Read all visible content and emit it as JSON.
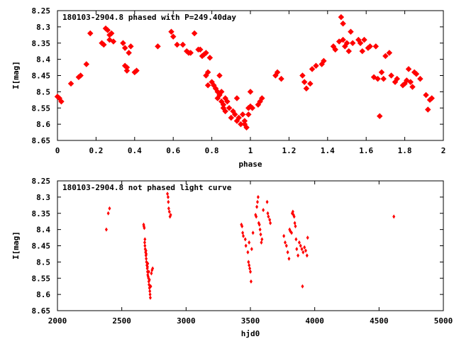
{
  "chart_data": [
    {
      "type": "scatter",
      "title": "180103-2904.8 phased with P=249.40day",
      "xlabel": "phase",
      "ylabel": "I[mag]",
      "xlim": [
        0,
        2
      ],
      "ylim": [
        8.25,
        8.65
      ],
      "y_inverted": true,
      "xticks": [
        "0",
        "0.2",
        "0.4",
        "0.6",
        "0.8",
        "1",
        "1.2",
        "1.4",
        "1.6",
        "1.8",
        "2"
      ],
      "xtick_values": [
        0,
        0.2,
        0.4,
        0.6,
        0.8,
        1.0,
        1.2,
        1.4,
        1.6,
        1.8,
        2.0
      ],
      "yticks": [
        "8.25",
        "8.3",
        "8.35",
        "8.4",
        "8.45",
        "8.5",
        "8.55",
        "8.6",
        "8.65"
      ],
      "ytick_values": [
        8.25,
        8.3,
        8.35,
        8.4,
        8.45,
        8.5,
        8.55,
        8.6,
        8.65
      ],
      "grid": false,
      "marker_color": "#ff0000",
      "points": [
        [
          0.0,
          8.515
        ],
        [
          0.01,
          8.52
        ],
        [
          0.02,
          8.53
        ],
        [
          0.07,
          8.475
        ],
        [
          0.11,
          8.455
        ],
        [
          0.12,
          8.45
        ],
        [
          0.15,
          8.415
        ],
        [
          0.17,
          8.32
        ],
        [
          0.23,
          8.35
        ],
        [
          0.24,
          8.355
        ],
        [
          0.25,
          8.305
        ],
        [
          0.26,
          8.31
        ],
        [
          0.27,
          8.325
        ],
        [
          0.27,
          8.34
        ],
        [
          0.28,
          8.32
        ],
        [
          0.29,
          8.345
        ],
        [
          0.34,
          8.35
        ],
        [
          0.35,
          8.365
        ],
        [
          0.35,
          8.42
        ],
        [
          0.36,
          8.425
        ],
        [
          0.36,
          8.435
        ],
        [
          0.37,
          8.38
        ],
        [
          0.38,
          8.36
        ],
        [
          0.4,
          8.44
        ],
        [
          0.41,
          8.435
        ],
        [
          0.52,
          8.36
        ],
        [
          0.59,
          8.315
        ],
        [
          0.6,
          8.33
        ],
        [
          0.62,
          8.355
        ],
        [
          0.65,
          8.355
        ],
        [
          0.67,
          8.375
        ],
        [
          0.68,
          8.38
        ],
        [
          0.69,
          8.38
        ],
        [
          0.71,
          8.32
        ],
        [
          0.73,
          8.37
        ],
        [
          0.74,
          8.37
        ],
        [
          0.75,
          8.39
        ],
        [
          0.76,
          8.385
        ],
        [
          0.77,
          8.38
        ],
        [
          0.77,
          8.45
        ],
        [
          0.78,
          8.48
        ],
        [
          0.78,
          8.44
        ],
        [
          0.79,
          8.395
        ],
        [
          0.8,
          8.47
        ],
        [
          0.81,
          8.48
        ],
        [
          0.82,
          8.49
        ],
        [
          0.83,
          8.5
        ],
        [
          0.83,
          8.52
        ],
        [
          0.84,
          8.51
        ],
        [
          0.84,
          8.45
        ],
        [
          0.85,
          8.53
        ],
        [
          0.85,
          8.5
        ],
        [
          0.86,
          8.54
        ],
        [
          0.86,
          8.55
        ],
        [
          0.87,
          8.52
        ],
        [
          0.87,
          8.56
        ],
        [
          0.88,
          8.53
        ],
        [
          0.89,
          8.55
        ],
        [
          0.9,
          8.58
        ],
        [
          0.91,
          8.56
        ],
        [
          0.92,
          8.57
        ],
        [
          0.93,
          8.59
        ],
        [
          0.93,
          8.52
        ],
        [
          0.94,
          8.58
        ],
        [
          0.95,
          8.6
        ],
        [
          0.96,
          8.57
        ],
        [
          0.97,
          8.59
        ],
        [
          0.97,
          8.6
        ],
        [
          0.98,
          8.61
        ],
        [
          0.99,
          8.57
        ],
        [
          0.99,
          8.55
        ],
        [
          1.0,
          8.5
        ],
        [
          1.0,
          8.545
        ],
        [
          1.01,
          8.55
        ],
        [
          1.04,
          8.54
        ],
        [
          1.05,
          8.53
        ],
        [
          1.06,
          8.52
        ],
        [
          1.13,
          8.45
        ],
        [
          1.14,
          8.44
        ],
        [
          1.16,
          8.46
        ],
        [
          1.27,
          8.45
        ],
        [
          1.28,
          8.47
        ],
        [
          1.29,
          8.49
        ],
        [
          1.31,
          8.475
        ],
        [
          1.32,
          8.43
        ],
        [
          1.34,
          8.42
        ],
        [
          1.37,
          8.415
        ],
        [
          1.38,
          8.405
        ],
        [
          1.43,
          8.36
        ],
        [
          1.44,
          8.37
        ],
        [
          1.46,
          8.345
        ],
        [
          1.47,
          8.27
        ],
        [
          1.48,
          8.29
        ],
        [
          1.48,
          8.34
        ],
        [
          1.49,
          8.36
        ],
        [
          1.5,
          8.35
        ],
        [
          1.51,
          8.375
        ],
        [
          1.52,
          8.315
        ],
        [
          1.53,
          8.35
        ],
        [
          1.56,
          8.34
        ],
        [
          1.57,
          8.35
        ],
        [
          1.58,
          8.375
        ],
        [
          1.59,
          8.34
        ],
        [
          1.61,
          8.365
        ],
        [
          1.62,
          8.36
        ],
        [
          1.64,
          8.455
        ],
        [
          1.65,
          8.36
        ],
        [
          1.66,
          8.46
        ],
        [
          1.67,
          8.575
        ],
        [
          1.68,
          8.44
        ],
        [
          1.69,
          8.46
        ],
        [
          1.7,
          8.39
        ],
        [
          1.72,
          8.38
        ],
        [
          1.73,
          8.45
        ],
        [
          1.75,
          8.47
        ],
        [
          1.76,
          8.46
        ],
        [
          1.79,
          8.48
        ],
        [
          1.8,
          8.475
        ],
        [
          1.81,
          8.465
        ],
        [
          1.82,
          8.43
        ],
        [
          1.83,
          8.47
        ],
        [
          1.84,
          8.485
        ],
        [
          1.85,
          8.44
        ],
        [
          1.86,
          8.445
        ],
        [
          1.88,
          8.46
        ],
        [
          1.91,
          8.51
        ],
        [
          1.92,
          8.555
        ],
        [
          1.93,
          8.525
        ],
        [
          1.94,
          8.52
        ]
      ]
    },
    {
      "type": "scatter",
      "title": "180103-2904.8 not phased light curve",
      "xlabel": "hjd0",
      "ylabel": "I[mag]",
      "xlim": [
        2000,
        5000
      ],
      "ylim": [
        8.25,
        8.65
      ],
      "y_inverted": true,
      "xticks": [
        "2000",
        "2500",
        "3000",
        "3500",
        "4000",
        "4500",
        "5000"
      ],
      "xtick_values": [
        2000,
        2500,
        3000,
        3500,
        4000,
        4500,
        5000
      ],
      "yticks": [
        "8.25",
        "8.3",
        "8.35",
        "8.4",
        "8.45",
        "8.5",
        "8.55",
        "8.6",
        "8.65"
      ],
      "ytick_values": [
        8.25,
        8.3,
        8.35,
        8.4,
        8.45,
        8.5,
        8.55,
        8.6,
        8.65
      ],
      "grid": false,
      "marker_color": "#ff0000",
      "points": [
        [
          2380,
          8.4
        ],
        [
          2395,
          8.35
        ],
        [
          2405,
          8.335
        ],
        [
          2670,
          8.385
        ],
        [
          2672,
          8.39
        ],
        [
          2675,
          8.395
        ],
        [
          2678,
          8.44
        ],
        [
          2680,
          8.45
        ],
        [
          2682,
          8.46
        ],
        [
          2685,
          8.47
        ],
        [
          2688,
          8.48
        ],
        [
          2690,
          8.49
        ],
        [
          2692,
          8.5
        ],
        [
          2695,
          8.51
        ],
        [
          2698,
          8.52
        ],
        [
          2700,
          8.53
        ],
        [
          2702,
          8.54
        ],
        [
          2705,
          8.545
        ],
        [
          2708,
          8.55
        ],
        [
          2710,
          8.56
        ],
        [
          2712,
          8.57
        ],
        [
          2715,
          8.58
        ],
        [
          2718,
          8.59
        ],
        [
          2720,
          8.6
        ],
        [
          2722,
          8.61
        ],
        [
          2700,
          8.515
        ],
        [
          2710,
          8.53
        ],
        [
          2730,
          8.535
        ],
        [
          2735,
          8.525
        ],
        [
          2740,
          8.52
        ],
        [
          2688,
          8.465
        ],
        [
          2702,
          8.505
        ],
        [
          2715,
          8.555
        ],
        [
          2725,
          8.575
        ],
        [
          2680,
          8.43
        ],
        [
          2690,
          8.475
        ],
        [
          2855,
          8.29
        ],
        [
          2860,
          8.3
        ],
        [
          2862,
          8.315
        ],
        [
          2865,
          8.335
        ],
        [
          2870,
          8.345
        ],
        [
          2875,
          8.36
        ],
        [
          2880,
          8.355
        ],
        [
          3430,
          8.385
        ],
        [
          3435,
          8.39
        ],
        [
          3440,
          8.41
        ],
        [
          3445,
          8.42
        ],
        [
          3460,
          8.43
        ],
        [
          3465,
          8.45
        ],
        [
          3480,
          8.47
        ],
        [
          3485,
          8.5
        ],
        [
          3490,
          8.51
        ],
        [
          3495,
          8.52
        ],
        [
          3500,
          8.53
        ],
        [
          3505,
          8.56
        ],
        [
          3490,
          8.44
        ],
        [
          3510,
          8.46
        ],
        [
          3520,
          8.41
        ],
        [
          3540,
          8.355
        ],
        [
          3545,
          8.36
        ],
        [
          3550,
          8.33
        ],
        [
          3555,
          8.315
        ],
        [
          3560,
          8.3
        ],
        [
          3565,
          8.38
        ],
        [
          3570,
          8.385
        ],
        [
          3575,
          8.4
        ],
        [
          3580,
          8.415
        ],
        [
          3585,
          8.44
        ],
        [
          3590,
          8.43
        ],
        [
          3600,
          8.34
        ],
        [
          3630,
          8.315
        ],
        [
          3635,
          8.35
        ],
        [
          3640,
          8.36
        ],
        [
          3650,
          8.37
        ],
        [
          3655,
          8.38
        ],
        [
          3760,
          8.42
        ],
        [
          3770,
          8.44
        ],
        [
          3780,
          8.45
        ],
        [
          3790,
          8.47
        ],
        [
          3800,
          8.49
        ],
        [
          3805,
          8.4
        ],
        [
          3810,
          8.405
        ],
        [
          3820,
          8.41
        ],
        [
          3825,
          8.35
        ],
        [
          3830,
          8.345
        ],
        [
          3835,
          8.355
        ],
        [
          3840,
          8.36
        ],
        [
          3845,
          8.38
        ],
        [
          3850,
          8.39
        ],
        [
          3855,
          8.43
        ],
        [
          3860,
          8.46
        ],
        [
          3870,
          8.48
        ],
        [
          3880,
          8.44
        ],
        [
          3890,
          8.45
        ],
        [
          3900,
          8.46
        ],
        [
          3905,
          8.575
        ],
        [
          3910,
          8.47
        ],
        [
          3920,
          8.455
        ],
        [
          3930,
          8.465
        ],
        [
          3940,
          8.48
        ],
        [
          3945,
          8.425
        ],
        [
          4615,
          8.36
        ]
      ]
    }
  ]
}
